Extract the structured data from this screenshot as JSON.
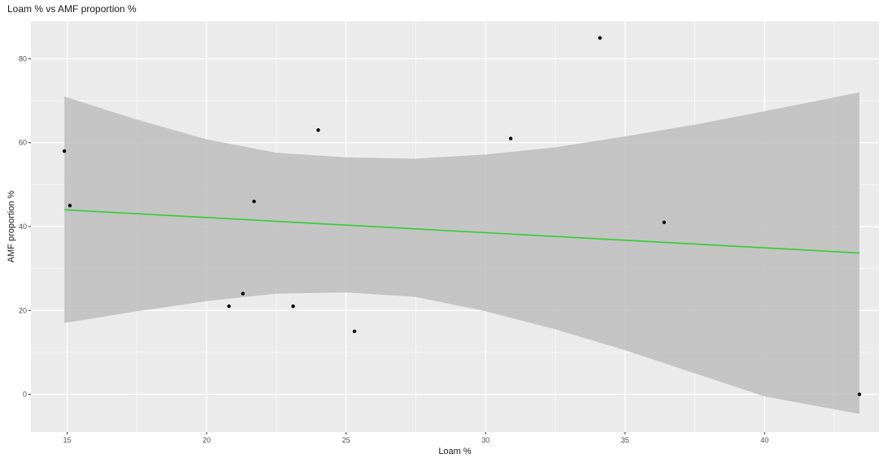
{
  "chart_data": {
    "type": "scatter",
    "title": "Loam % vs AMF proportion %",
    "xlabel": "Loam %",
    "ylabel": "AMF proportion %",
    "xlim": [
      13.7,
      44.1
    ],
    "ylim": [
      -9,
      89
    ],
    "x_ticks": [
      15,
      20,
      25,
      30,
      35,
      40
    ],
    "y_ticks": [
      0,
      20,
      40,
      60,
      80
    ],
    "grid": true,
    "points": [
      {
        "x": 14.9,
        "y": 58
      },
      {
        "x": 15.1,
        "y": 45
      },
      {
        "x": 20.8,
        "y": 21
      },
      {
        "x": 21.3,
        "y": 24
      },
      {
        "x": 21.7,
        "y": 46
      },
      {
        "x": 23.1,
        "y": 21
      },
      {
        "x": 24.0,
        "y": 63
      },
      {
        "x": 25.3,
        "y": 15
      },
      {
        "x": 30.9,
        "y": 61
      },
      {
        "x": 34.1,
        "y": 85
      },
      {
        "x": 36.4,
        "y": 41
      },
      {
        "x": 43.4,
        "y": 0
      }
    ],
    "fit_line": {
      "method": "linear",
      "color": "#33cc33",
      "x": [
        14.9,
        43.4
      ],
      "y": [
        44,
        33.7
      ]
    },
    "confidence_band": {
      "color": "#bdbdbd",
      "x": [
        14.9,
        17.5,
        20,
        22.5,
        25,
        27.5,
        30,
        32.5,
        35,
        37.5,
        40,
        43.4
      ],
      "upper": [
        71,
        65.5,
        60.8,
        57.6,
        56.5,
        56.2,
        57.2,
        58.9,
        61.5,
        64.3,
        67.5,
        72
      ],
      "lower": [
        17,
        19.8,
        22.2,
        24,
        24.3,
        23.2,
        19.8,
        15.5,
        10.5,
        5,
        -0.5,
        -4.7
      ]
    },
    "colors": {
      "panel_background": "#ebebeb",
      "grid": "#ffffff",
      "point": "#000000"
    }
  }
}
